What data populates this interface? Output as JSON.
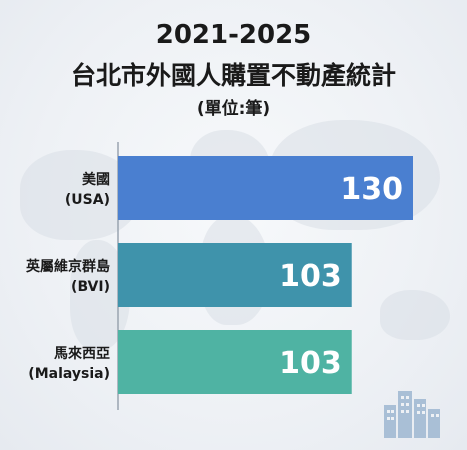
{
  "header": {
    "years": "2021-2025",
    "title": "台北市外國人購置不動產統計",
    "unit": "(單位:筆)"
  },
  "chart_data": {
    "type": "bar",
    "orientation": "horizontal",
    "title": "2021-2025 台北市外國人購置不動產統計",
    "subtitle": "(單位:筆)",
    "categories": [
      [
        "美國",
        "(USA)"
      ],
      [
        "英屬維京群島",
        "(BVI)"
      ],
      [
        "馬來西亞",
        "(Malaysia)"
      ]
    ],
    "values": [
      130,
      103,
      103
    ],
    "colors": [
      "#4a7fd0",
      "#3f93ab",
      "#4fb3a3"
    ],
    "xlim": [
      0,
      130
    ],
    "grid": false,
    "legend": "none"
  },
  "decor": {
    "background_icon": "world-map-icon",
    "corner_icon": "city-buildings-icon"
  }
}
